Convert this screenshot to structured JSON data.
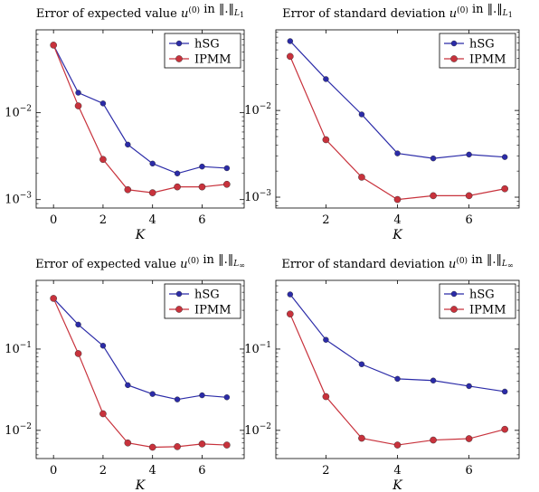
{
  "chart_data": [
    {
      "type": "line",
      "title_parts": [
        "Error of expected value ",
        "u",
        "(0)",
        " in ",
        "‖.‖",
        "L",
        "1"
      ],
      "xlabel": "K",
      "ylabel": "",
      "yscale": "log",
      "xlim": [
        -0.7,
        7.7
      ],
      "ylim": [
        0.0008,
        0.09
      ],
      "xticks": [
        0,
        2,
        4,
        6
      ],
      "yticks": [
        {
          "value": 0.01,
          "base": "10",
          "exp": "−2"
        },
        {
          "value": 0.001,
          "base": "10",
          "exp": "−3"
        }
      ],
      "grid": false,
      "legend": "top-right",
      "series": [
        {
          "name": "hSG",
          "color": "#2b2ba8",
          "x": [
            0,
            1,
            2,
            3,
            4,
            5,
            6,
            7
          ],
          "y": [
            0.06,
            0.017,
            0.0128,
            0.0043,
            0.0026,
            0.002,
            0.0024,
            0.0023
          ]
        },
        {
          "name": "IPMM",
          "color": "#c8323c",
          "x": [
            0,
            1,
            2,
            3,
            4,
            5,
            6,
            7
          ],
          "y": [
            0.06,
            0.012,
            0.0029,
            0.0013,
            0.0012,
            0.0014,
            0.0014,
            0.0015
          ]
        }
      ]
    },
    {
      "type": "line",
      "title_parts": [
        "Error of standard deviation ",
        "u",
        "(0)",
        " in ",
        "‖.‖",
        "L",
        "1"
      ],
      "xlabel": "K",
      "ylabel": "",
      "yscale": "log",
      "xlim": [
        0.6,
        7.4
      ],
      "ylim": [
        0.00075,
        0.085
      ],
      "xticks": [
        2,
        4,
        6
      ],
      "yticks": [
        {
          "value": 0.01,
          "base": "10",
          "exp": "−2"
        },
        {
          "value": 0.001,
          "base": "10",
          "exp": "−3"
        }
      ],
      "grid": false,
      "legend": "top-right",
      "series": [
        {
          "name": "hSG",
          "color": "#2b2ba8",
          "x": [
            1,
            2,
            3,
            4,
            5,
            6,
            7
          ],
          "y": [
            0.063,
            0.023,
            0.009,
            0.0032,
            0.0028,
            0.0031,
            0.0029
          ]
        },
        {
          "name": "IPMM",
          "color": "#c8323c",
          "x": [
            1,
            2,
            3,
            4,
            5,
            6,
            7
          ],
          "y": [
            0.042,
            0.0046,
            0.0017,
            0.00094,
            0.00104,
            0.00104,
            0.00125
          ]
        }
      ]
    },
    {
      "type": "line",
      "title_parts": [
        "Error of expected value ",
        "u",
        "(0)",
        " in ",
        "‖.‖",
        "L",
        "∞"
      ],
      "xlabel": "K",
      "ylabel": "",
      "yscale": "log",
      "xlim": [
        -0.7,
        7.7
      ],
      "ylim": [
        0.0045,
        0.7
      ],
      "xticks": [
        0,
        2,
        4,
        6
      ],
      "yticks": [
        {
          "value": 0.1,
          "base": "10",
          "exp": "−1"
        },
        {
          "value": 0.01,
          "base": "10",
          "exp": "−2"
        }
      ],
      "grid": false,
      "legend": "top-right",
      "series": [
        {
          "name": "hSG",
          "color": "#2b2ba8",
          "x": [
            0,
            1,
            2,
            3,
            4,
            5,
            6,
            7
          ],
          "y": [
            0.42,
            0.2,
            0.11,
            0.036,
            0.028,
            0.024,
            0.027,
            0.0255
          ]
        },
        {
          "name": "IPMM",
          "color": "#c8323c",
          "x": [
            0,
            1,
            2,
            3,
            4,
            5,
            6,
            7
          ],
          "y": [
            0.42,
            0.088,
            0.016,
            0.007,
            0.0062,
            0.0063,
            0.0068,
            0.0066
          ]
        }
      ]
    },
    {
      "type": "line",
      "title_parts": [
        "Error of standard deviation ",
        "u",
        "(0)",
        " in ",
        "‖.‖",
        "L",
        "∞"
      ],
      "xlabel": "K",
      "ylabel": "",
      "yscale": "log",
      "xlim": [
        0.6,
        7.4
      ],
      "ylim": [
        0.0045,
        0.7
      ],
      "xticks": [
        2,
        4,
        6
      ],
      "yticks": [
        {
          "value": 0.1,
          "base": "10",
          "exp": "−1"
        },
        {
          "value": 0.01,
          "base": "10",
          "exp": "−2"
        }
      ],
      "grid": false,
      "legend": "top-right",
      "series": [
        {
          "name": "hSG",
          "color": "#2b2ba8",
          "x": [
            1,
            2,
            3,
            4,
            5,
            6,
            7
          ],
          "y": [
            0.47,
            0.13,
            0.065,
            0.043,
            0.041,
            0.035,
            0.03
          ]
        },
        {
          "name": "IPMM",
          "color": "#c8323c",
          "x": [
            1,
            2,
            3,
            4,
            5,
            6,
            7
          ],
          "y": [
            0.27,
            0.026,
            0.008,
            0.0066,
            0.0076,
            0.0079,
            0.0103
          ]
        }
      ]
    }
  ]
}
